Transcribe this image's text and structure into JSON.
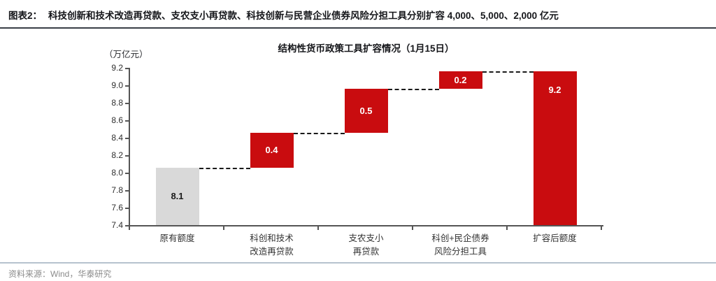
{
  "figure": {
    "label": "图表2：",
    "title": "科技创新和技术改造再贷款、支农支小再贷款、科技创新与民营企业债券风险分担工具分别扩容 4,000、5,000、2,000 亿元",
    "source": "资料来源：Wind，华泰研究"
  },
  "chart_data": {
    "type": "bar",
    "subtype": "waterfall",
    "title": "结构性货币政策工具扩容情况（1月15日）",
    "unit_label": "（万亿元）",
    "xlabel": "",
    "ylabel": "",
    "ylim": [
      7.4,
      9.2
    ],
    "ytick_labels": [
      "9.2",
      "9.0",
      "8.8",
      "8.6",
      "8.4",
      "8.2",
      "8.0",
      "7.8",
      "7.6",
      "7.4"
    ],
    "grid": false,
    "legend": false,
    "categories": [
      "原有额度",
      "科创和技术改造再贷款",
      "支农支小再贷款",
      "科创+民企债券风险分担工具",
      "扩容后额度"
    ],
    "category_lines": [
      [
        "原有额度"
      ],
      [
        "科创和技术",
        "改造再贷款"
      ],
      [
        "支农支小",
        "再贷款"
      ],
      [
        "科创+民企债券",
        "风险分担工具"
      ],
      [
        "扩容后额度"
      ]
    ],
    "bars": [
      {
        "category": "原有额度",
        "base": 7.4,
        "top": 8.06,
        "value_label": "8.1",
        "color": "#D9D9D9",
        "label_color": "#1A1A1A",
        "label_position": "middle"
      },
      {
        "category": "科创和技术改造再贷款",
        "base": 8.06,
        "top": 8.46,
        "value_label": "0.4",
        "color": "#C90C0F",
        "label_color": "#FFFFFF",
        "label_position": "middle"
      },
      {
        "category": "支农支小再贷款",
        "base": 8.46,
        "top": 8.96,
        "value_label": "0.5",
        "color": "#C90C0F",
        "label_color": "#FFFFFF",
        "label_position": "middle"
      },
      {
        "category": "科创+民企债券风险分担工具",
        "base": 8.96,
        "top": 9.16,
        "value_label": "0.2",
        "color": "#C90C0F",
        "label_color": "#FFFFFF",
        "label_position": "middle"
      },
      {
        "category": "扩容后额度",
        "base": 7.4,
        "top": 9.16,
        "value_label": "9.2",
        "color": "#C90C0F",
        "label_color": "#FFFFFF",
        "label_position": "top"
      }
    ]
  },
  "colors": {
    "bar_red": "#C90C0F",
    "bar_gray": "#D9D9D9",
    "axis": "#555555",
    "connector": "#1A1A1A",
    "header_rule": "#3A3F47",
    "footer_rule": "#B6C2CE",
    "tick_text": "#2E2E2E",
    "source_text": "#8C8C8C"
  }
}
